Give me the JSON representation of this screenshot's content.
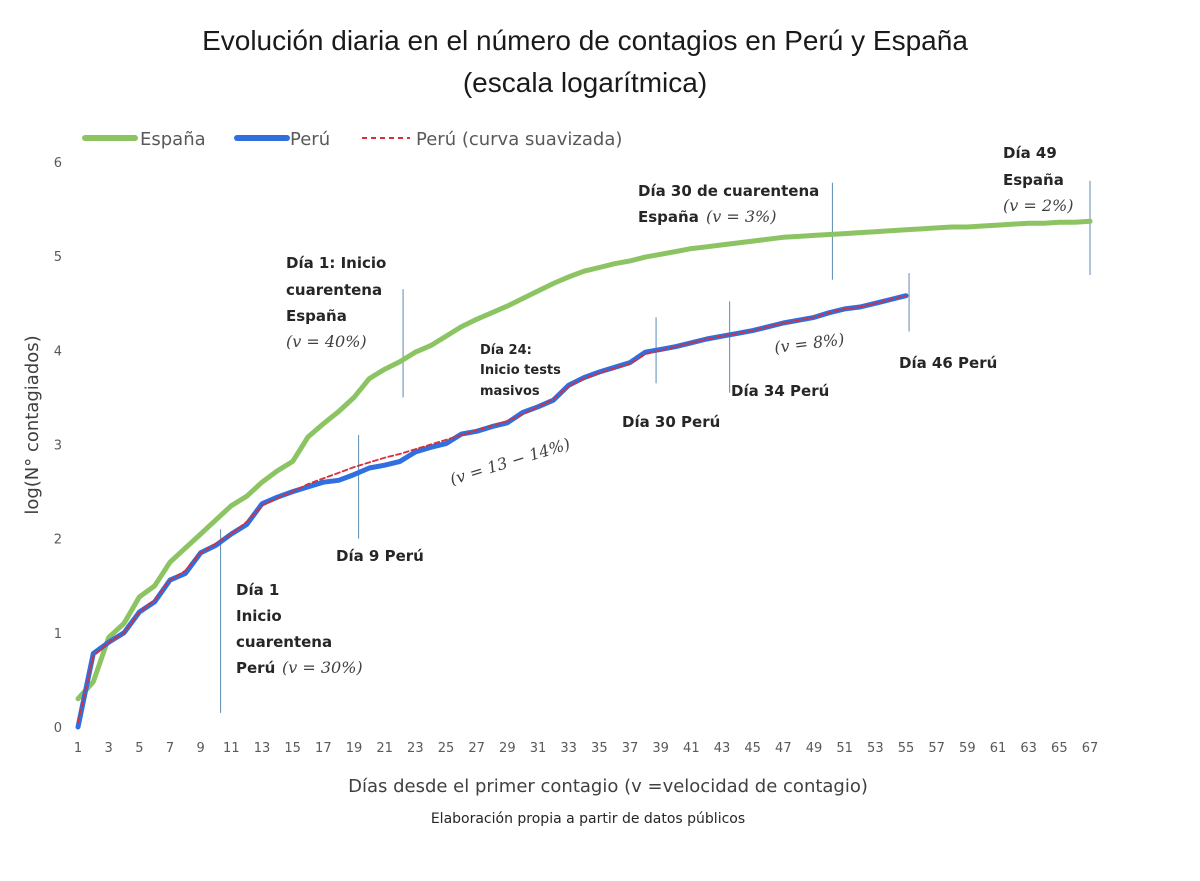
{
  "chart_data": {
    "type": "line",
    "title_line1": "Evolución diaria en el número de contagios en Perú y España",
    "title_line2": "(escala logarítmica)",
    "xlabel": "Días desde el primer contagio (v =velocidad de contagio)",
    "ylabel": "log(N° contagiados)",
    "credit": "Elaboración propia a partir de datos públicos",
    "xlim": [
      1,
      67
    ],
    "ylim": [
      0,
      6
    ],
    "x_ticks": [
      1,
      3,
      5,
      7,
      9,
      11,
      13,
      15,
      17,
      19,
      21,
      23,
      25,
      27,
      29,
      31,
      33,
      35,
      37,
      39,
      41,
      43,
      45,
      47,
      49,
      51,
      53,
      55,
      57,
      59,
      61,
      63,
      65,
      67
    ],
    "y_ticks": [
      0,
      1,
      2,
      3,
      4,
      5,
      6
    ],
    "series": [
      {
        "name": "España",
        "color": "#8cc463",
        "dash": "solid",
        "x": [
          1,
          2,
          3,
          4,
          5,
          6,
          7,
          8,
          9,
          10,
          11,
          12,
          13,
          14,
          15,
          16,
          17,
          18,
          19,
          20,
          21,
          22,
          23,
          24,
          25,
          26,
          27,
          28,
          29,
          30,
          31,
          32,
          33,
          34,
          35,
          36,
          37,
          38,
          39,
          40,
          41,
          42,
          43,
          44,
          45,
          46,
          47,
          48,
          49,
          50,
          51,
          52,
          53,
          54,
          55,
          56,
          57,
          58,
          59,
          60,
          61,
          62,
          63,
          64,
          65,
          66,
          67
        ],
        "values": [
          0.3,
          0.48,
          0.95,
          1.1,
          1.38,
          1.5,
          1.75,
          1.9,
          2.05,
          2.2,
          2.35,
          2.45,
          2.6,
          2.72,
          2.82,
          3.08,
          3.22,
          3.35,
          3.5,
          3.7,
          3.8,
          3.88,
          3.98,
          4.05,
          4.15,
          4.25,
          4.33,
          4.4,
          4.47,
          4.55,
          4.63,
          4.71,
          4.78,
          4.84,
          4.88,
          4.92,
          4.95,
          4.99,
          5.02,
          5.05,
          5.08,
          5.1,
          5.12,
          5.14,
          5.16,
          5.18,
          5.2,
          5.21,
          5.22,
          5.23,
          5.24,
          5.25,
          5.26,
          5.27,
          5.28,
          5.29,
          5.3,
          5.31,
          5.31,
          5.32,
          5.33,
          5.34,
          5.35,
          5.35,
          5.36,
          5.36,
          5.37
        ]
      },
      {
        "name": "Perú",
        "color": "#2f6fe0",
        "dash": "solid",
        "x": [
          1,
          2,
          3,
          4,
          5,
          6,
          7,
          8,
          9,
          10,
          11,
          12,
          13,
          14,
          15,
          16,
          17,
          18,
          19,
          20,
          21,
          22,
          23,
          24,
          25,
          26,
          27,
          28,
          29,
          30,
          31,
          32,
          33,
          34,
          35,
          36,
          37,
          38,
          39,
          40,
          41,
          42,
          43,
          44,
          45,
          46,
          47,
          48,
          49,
          50,
          51,
          52,
          53,
          54,
          55
        ],
        "values": [
          0.0,
          0.78,
          0.9,
          1.0,
          1.22,
          1.33,
          1.56,
          1.63,
          1.85,
          1.93,
          2.05,
          2.15,
          2.37,
          2.44,
          2.5,
          2.55,
          2.6,
          2.62,
          2.68,
          2.75,
          2.78,
          2.82,
          2.92,
          2.97,
          3.01,
          3.11,
          3.14,
          3.19,
          3.23,
          3.34,
          3.4,
          3.47,
          3.63,
          3.71,
          3.77,
          3.82,
          3.87,
          3.98,
          4.01,
          4.04,
          4.08,
          4.12,
          4.15,
          4.18,
          4.21,
          4.25,
          4.29,
          4.32,
          4.35,
          4.4,
          4.44,
          4.46,
          4.5,
          4.54,
          4.58
        ]
      },
      {
        "name": "Perú (curva suavizada)",
        "color": "#d6303a",
        "dash": "dashed",
        "x": [
          1,
          2,
          3,
          4,
          5,
          6,
          7,
          8,
          9,
          10,
          11,
          12,
          13,
          14,
          15,
          16,
          17,
          18,
          19,
          20,
          21,
          22,
          23,
          24,
          25,
          26,
          27,
          28,
          29,
          30,
          31,
          32,
          33,
          34,
          35,
          36,
          37,
          38,
          39,
          40,
          41,
          42,
          43,
          44,
          45,
          46,
          47,
          48,
          49,
          50,
          51,
          52,
          53,
          54,
          55
        ],
        "values": [
          0.05,
          0.75,
          0.9,
          1.0,
          1.22,
          1.35,
          1.56,
          1.66,
          1.85,
          1.95,
          2.05,
          2.18,
          2.35,
          2.43,
          2.5,
          2.58,
          2.64,
          2.7,
          2.76,
          2.81,
          2.86,
          2.9,
          2.95,
          3.0,
          3.05,
          3.1,
          3.15,
          3.2,
          3.25,
          3.32,
          3.4,
          3.48,
          3.62,
          3.7,
          3.76,
          3.81,
          3.86,
          3.96,
          4.0,
          4.04,
          4.08,
          4.12,
          4.15,
          4.18,
          4.21,
          4.25,
          4.29,
          4.32,
          4.35,
          4.4,
          4.44,
          4.46,
          4.5,
          4.54,
          4.58
        ]
      }
    ],
    "annotations": [
      {
        "id": "dia1-peru",
        "lines": [
          "Día 1",
          "Inicio",
          "cuarentena",
          "Perú"
        ],
        "math": "(v = 30%)",
        "vline": {
          "x": 10.3,
          "y1": 0.15,
          "y2": 2.1
        }
      },
      {
        "id": "dia9-peru",
        "lines": [
          "Día 9 Perú"
        ],
        "vline": {
          "x": 19.3,
          "y1": 2.0,
          "y2": 3.1
        }
      },
      {
        "id": "dia1-espana",
        "lines": [
          "Día 1: Inicio",
          "cuarentena",
          "España"
        ],
        "math": "(v = 40%)",
        "vline": {
          "x": 22.2,
          "y1": 3.5,
          "y2": 4.65
        }
      },
      {
        "id": "dia24",
        "lines": [
          "Día 24:",
          "Inicio tests",
          "masivos"
        ]
      },
      {
        "id": "v13",
        "math": "(v = 13 − 14%)"
      },
      {
        "id": "dia30-peru",
        "lines": [
          "Día 30 Perú"
        ],
        "vline": {
          "x": 38.7,
          "y1": 3.65,
          "y2": 4.35
        }
      },
      {
        "id": "dia34-peru",
        "lines": [
          "Día 34 Perú"
        ],
        "vline": {
          "x": 43.5,
          "y1": 3.55,
          "y2": 4.52
        }
      },
      {
        "id": "v8",
        "math": "(v = 8%)"
      },
      {
        "id": "dia46-peru",
        "lines": [
          "Día 46 Perú"
        ],
        "vline": {
          "x": 55.2,
          "y1": 4.2,
          "y2": 4.82
        }
      },
      {
        "id": "dia30-espana",
        "lines": [
          "Día 30 de cuarentena",
          "España"
        ],
        "math": "(v = 3%)",
        "vline": {
          "x": 50.2,
          "y1": 4.75,
          "y2": 5.78
        }
      },
      {
        "id": "dia49-espana",
        "lines": [
          "Día 49",
          "España"
        ],
        "math": "(v = 2%)",
        "vline": {
          "x": 67.0,
          "y1": 4.8,
          "y2": 5.8
        }
      }
    ]
  }
}
